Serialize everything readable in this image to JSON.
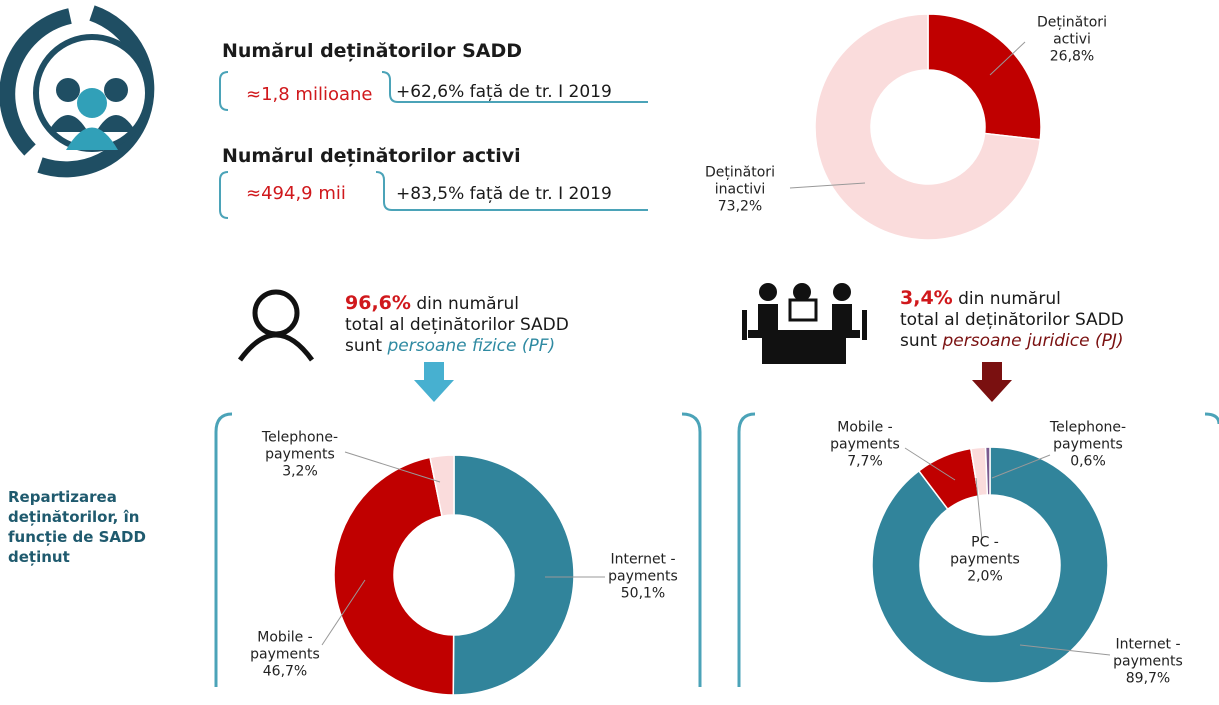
{
  "summary": {
    "holders_title": "Numărul deținătorilor SADD",
    "holders_value": "≈1,8 milioane",
    "holders_change": "+62,6% față de tr. I 2019",
    "active_title": "Numărul deținătorilor activi",
    "active_value": "≈494,9 mii",
    "active_change": "+83,5% față de tr. I 2019"
  },
  "pf": {
    "share": "96,6%",
    "line1": "din numărul",
    "line2": "total al deținătorilor SADD",
    "line3": "sunt",
    "kind": "persoane fizice (PF)"
  },
  "pj": {
    "share": "3,4%",
    "line1": "din numărul",
    "line2": "total al deținătorilor SADD",
    "line3": "sunt",
    "kind": "persoane juridice (PJ)"
  },
  "side_label": "Repartizarea deținătorilor, în funcție de SADD deținut",
  "chart_data": [
    {
      "type": "pie",
      "categories": [
        "Deținători activi",
        "Deținători inactivi"
      ],
      "values": [
        26.8,
        73.2
      ],
      "value_labels": [
        "26,8%",
        "73,2%"
      ],
      "colors": [
        "#c00000",
        "#fadcdc"
      ]
    },
    {
      "type": "pie",
      "categories": [
        "Internet - payments",
        "Mobile - payments",
        "Telephone-payments"
      ],
      "values": [
        50.1,
        46.7,
        3.2
      ],
      "value_labels": [
        "50,1%",
        "46,7%",
        "3,2%"
      ],
      "colors": [
        "#31849b",
        "#c00000",
        "#fadcdc"
      ]
    },
    {
      "type": "pie",
      "categories": [
        "Internet - payments",
        "Mobile - payments",
        "PC - payments",
        "Telephone-payments"
      ],
      "values": [
        89.7,
        7.7,
        2.0,
        0.6
      ],
      "value_labels": [
        "89,7%",
        "7,7%",
        "2,0%",
        "0,6%"
      ],
      "colors": [
        "#31849b",
        "#c00000",
        "#fadcdc",
        "#7b5a8f"
      ]
    }
  ]
}
